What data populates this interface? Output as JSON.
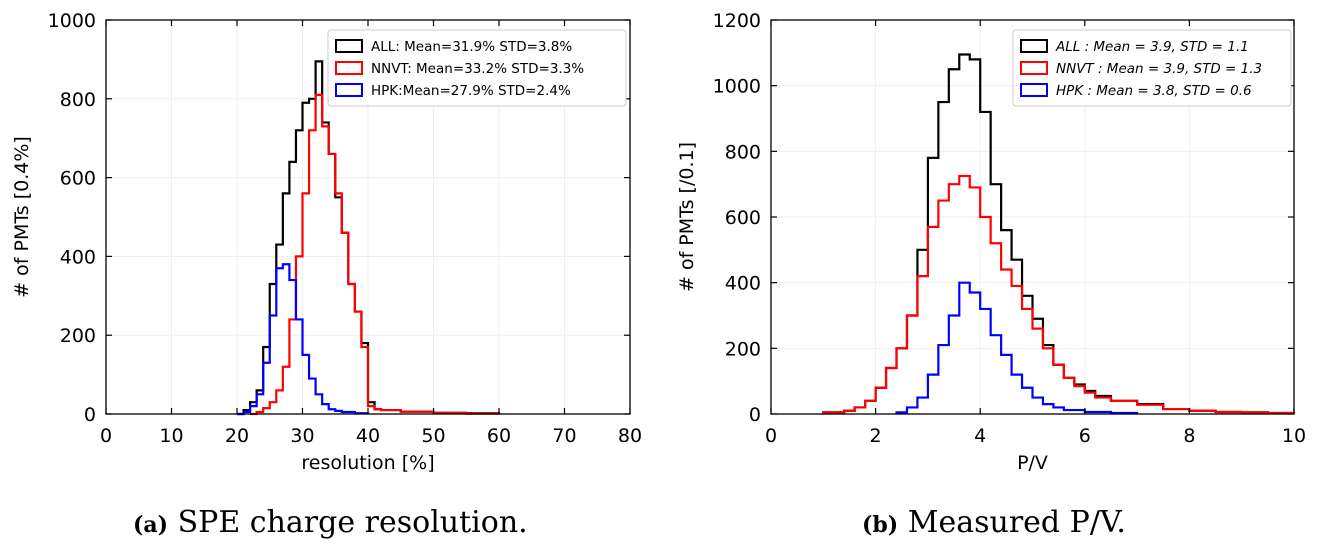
{
  "captions": [
    {
      "label": "(a)",
      "text": "SPE charge resolution."
    },
    {
      "label": "(b)",
      "text": "Measured P/V."
    }
  ],
  "chart_data": [
    {
      "type": "histogram",
      "xlabel": "resolution [%]",
      "ylabel": "# of PMTs [0.4%]",
      "xlim": [
        0,
        80
      ],
      "ylim": [
        0,
        1000
      ],
      "xticks": [
        0,
        10,
        20,
        30,
        40,
        50,
        60,
        70,
        80
      ],
      "yticks": [
        0,
        200,
        400,
        600,
        800,
        1000
      ],
      "legend_position": "top-right",
      "grid": true,
      "series": [
        {
          "name": "ALL: Mean=31.9% STD=3.8%",
          "color": "#000000",
          "x": [
            20,
            21,
            22,
            23,
            24,
            25,
            26,
            27,
            28,
            29,
            30,
            31,
            32,
            33,
            34,
            35,
            36,
            37,
            38,
            39,
            40,
            41,
            42,
            45,
            50,
            55,
            60
          ],
          "y": [
            0,
            10,
            30,
            60,
            170,
            330,
            430,
            560,
            640,
            720,
            790,
            800,
            895,
            740,
            660,
            550,
            460,
            330,
            260,
            180,
            30,
            12,
            10,
            6,
            3,
            2,
            0
          ]
        },
        {
          "name": "NNVT: Mean=33.2% STD=3.3%",
          "color": "#ff0000",
          "x": [
            22,
            23,
            24,
            25,
            26,
            27,
            28,
            29,
            30,
            31,
            32,
            33,
            34,
            35,
            36,
            37,
            38,
            39,
            40,
            41,
            42,
            45,
            50,
            55,
            60
          ],
          "y": [
            0,
            5,
            15,
            30,
            60,
            120,
            240,
            400,
            560,
            720,
            810,
            730,
            660,
            560,
            460,
            330,
            260,
            170,
            20,
            12,
            10,
            6,
            3,
            1,
            0
          ]
        },
        {
          "name": "HPK:Mean=27.9% STD=2.4%",
          "color": "#0000ff",
          "x": [
            20,
            21,
            22,
            23,
            24,
            25,
            26,
            27,
            28,
            29,
            30,
            31,
            32,
            33,
            34,
            35,
            36,
            38,
            40
          ],
          "y": [
            0,
            5,
            20,
            50,
            130,
            250,
            370,
            380,
            340,
            240,
            150,
            90,
            50,
            25,
            12,
            8,
            5,
            2,
            0
          ]
        }
      ]
    },
    {
      "type": "histogram",
      "xlabel": "P/V",
      "ylabel": "# of PMTs [/0.1]",
      "xlim": [
        0,
        10
      ],
      "ylim": [
        0,
        1200
      ],
      "xticks": [
        0,
        2,
        4,
        6,
        8,
        10
      ],
      "yticks": [
        0,
        200,
        400,
        600,
        800,
        1000,
        1200
      ],
      "legend_position": "top-right",
      "grid": true,
      "series": [
        {
          "name": "ALL : Mean = 3.9, STD = 1.1",
          "color": "#000000",
          "x": [
            1.0,
            1.4,
            1.6,
            1.8,
            2.0,
            2.2,
            2.4,
            2.6,
            2.8,
            3.0,
            3.2,
            3.4,
            3.6,
            3.8,
            4.0,
            4.2,
            4.4,
            4.6,
            4.8,
            5.0,
            5.2,
            5.4,
            5.6,
            5.8,
            6.0,
            6.2,
            6.5,
            7.0,
            7.5,
            8.0,
            8.5,
            9.0,
            9.5,
            10.0
          ],
          "y": [
            5,
            10,
            20,
            40,
            80,
            140,
            200,
            300,
            500,
            780,
            950,
            1050,
            1095,
            1080,
            920,
            700,
            560,
            470,
            360,
            290,
            210,
            150,
            110,
            90,
            70,
            55,
            40,
            30,
            15,
            10,
            6,
            5,
            3,
            2
          ]
        },
        {
          "name": "NNVT : Mean = 3.9, STD = 1.3",
          "color": "#ff0000",
          "x": [
            1.0,
            1.4,
            1.6,
            1.8,
            2.0,
            2.2,
            2.4,
            2.6,
            2.8,
            3.0,
            3.2,
            3.4,
            3.6,
            3.8,
            4.0,
            4.2,
            4.4,
            4.6,
            4.8,
            5.0,
            5.2,
            5.4,
            5.6,
            5.8,
            6.0,
            6.2,
            6.5,
            7.0,
            7.5,
            8.0,
            8.5,
            9.0,
            9.5,
            10.0
          ],
          "y": [
            5,
            10,
            20,
            40,
            80,
            140,
            200,
            300,
            420,
            570,
            650,
            700,
            725,
            690,
            600,
            520,
            440,
            390,
            320,
            260,
            200,
            150,
            110,
            85,
            65,
            50,
            40,
            28,
            15,
            10,
            6,
            5,
            3,
            2
          ]
        },
        {
          "name": "HPK : Mean = 3.8, STD = 0.6",
          "color": "#0000ff",
          "x": [
            2.4,
            2.6,
            2.8,
            3.0,
            3.2,
            3.4,
            3.6,
            3.8,
            4.0,
            4.2,
            4.4,
            4.6,
            4.8,
            5.0,
            5.2,
            5.4,
            5.6,
            6.0,
            6.5,
            7.0
          ],
          "y": [
            5,
            20,
            50,
            120,
            210,
            300,
            400,
            370,
            320,
            240,
            180,
            120,
            80,
            50,
            30,
            20,
            12,
            6,
            3,
            0
          ]
        }
      ]
    }
  ]
}
